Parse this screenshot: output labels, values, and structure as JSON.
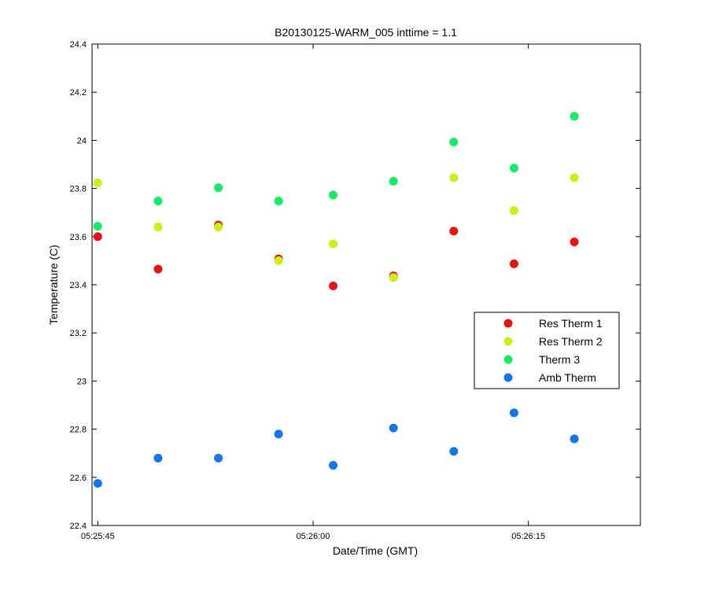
{
  "chart_data": {
    "type": "scatter",
    "title": "B20130125-WARM_005 inttime = 1.1",
    "xlabel": "Date/Time (GMT)",
    "ylabel": "Temperature (C)",
    "xlim": [
      "05:25:44.6",
      "05:26:22.8"
    ],
    "ylim": [
      22.4,
      24.4
    ],
    "xticks": [
      "05:25:45",
      "05:26:00",
      "05:26:15"
    ],
    "yticks": [
      "22.4",
      "22.6",
      "22.8",
      "23",
      "23.2",
      "23.4",
      "23.6",
      "23.8",
      "24",
      "24.2",
      "24.4"
    ],
    "grid": false,
    "legend_position": "right",
    "x": [
      "05:25:45",
      "05:25:49.2",
      "05:25:53.4",
      "05:25:57.6",
      "05:26:01.4",
      "05:26:05.6",
      "05:26:09.8",
      "05:26:14",
      "05:26:18.2"
    ],
    "series": [
      {
        "name": "Res Therm 1",
        "color": "#ee1111",
        "values": [
          23.6,
          23.465,
          23.648,
          23.508,
          23.395,
          23.437,
          23.623,
          23.487,
          23.578
        ]
      },
      {
        "name": "Res Therm 2",
        "color": "#ccee11",
        "values": [
          23.823,
          23.64,
          23.64,
          23.5,
          23.57,
          23.43,
          23.845,
          23.708,
          23.845
        ]
      },
      {
        "name": "Therm 3",
        "color": "#11ee66",
        "values": [
          23.643,
          23.748,
          23.803,
          23.748,
          23.773,
          23.83,
          23.993,
          23.885,
          24.1
        ]
      },
      {
        "name": "Amb Therm",
        "color": "#1177ee",
        "values": [
          22.575,
          22.68,
          22.68,
          22.78,
          22.65,
          22.805,
          22.708,
          22.868,
          22.76
        ]
      }
    ]
  }
}
